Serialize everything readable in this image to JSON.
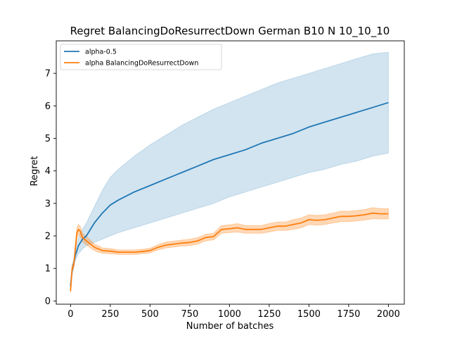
{
  "chart_data": {
    "type": "line",
    "title": "Regret BalancingDoResurrectDown German B10 N 10_10_10",
    "xlabel": "Number of batches",
    "ylabel": "Regret",
    "xlim": [
      -90,
      2100
    ],
    "ylim": [
      -0.1,
      8.0
    ],
    "xticks": [
      0,
      250,
      500,
      750,
      1000,
      1250,
      1500,
      1750,
      2000
    ],
    "yticks": [
      0,
      1,
      2,
      3,
      4,
      5,
      6,
      7
    ],
    "grid": false,
    "legend_position": "top-left",
    "series": [
      {
        "name": "alpha-0.5",
        "color": "#1f77b4",
        "band_color": "#1f77b4",
        "band_opacity": 0.2,
        "x": [
          0,
          10,
          20,
          30,
          50,
          75,
          100,
          150,
          200,
          250,
          300,
          400,
          500,
          600,
          700,
          800,
          900,
          1000,
          1100,
          1200,
          1300,
          1400,
          1500,
          1600,
          1700,
          1800,
          1900,
          2000
        ],
        "mean": [
          0.45,
          0.95,
          1.15,
          1.4,
          1.7,
          1.9,
          2.0,
          2.4,
          2.7,
          2.95,
          3.1,
          3.35,
          3.55,
          3.75,
          3.95,
          4.15,
          4.35,
          4.5,
          4.65,
          4.85,
          5.0,
          5.15,
          5.35,
          5.5,
          5.65,
          5.8,
          5.95,
          6.1
        ],
        "lower": [
          0.35,
          0.8,
          1.05,
          1.25,
          1.45,
          1.6,
          1.7,
          1.8,
          1.9,
          2.0,
          2.1,
          2.25,
          2.4,
          2.55,
          2.7,
          2.85,
          3.0,
          3.2,
          3.35,
          3.5,
          3.65,
          3.8,
          3.95,
          4.05,
          4.2,
          4.3,
          4.45,
          4.55
        ],
        "upper": [
          0.55,
          1.1,
          1.3,
          1.55,
          1.95,
          2.2,
          2.4,
          2.9,
          3.4,
          3.8,
          4.05,
          4.45,
          4.8,
          5.1,
          5.4,
          5.65,
          5.9,
          6.1,
          6.3,
          6.5,
          6.7,
          6.85,
          7.0,
          7.15,
          7.3,
          7.45,
          7.6,
          7.65
        ]
      },
      {
        "name": "alpha BalancingDoResurrectDown",
        "color": "#ff7f0e",
        "band_color": "#ff7f0e",
        "band_opacity": 0.3,
        "x": [
          0,
          10,
          20,
          30,
          40,
          50,
          60,
          75,
          100,
          125,
          150,
          175,
          200,
          250,
          300,
          350,
          400,
          450,
          500,
          550,
          600,
          650,
          700,
          750,
          800,
          850,
          900,
          950,
          1000,
          1050,
          1100,
          1150,
          1200,
          1250,
          1300,
          1350,
          1400,
          1450,
          1500,
          1550,
          1600,
          1650,
          1700,
          1750,
          1800,
          1850,
          1900,
          1950,
          2000
        ],
        "mean": [
          0.3,
          1.0,
          1.1,
          1.6,
          2.1,
          2.2,
          2.15,
          1.95,
          1.85,
          1.75,
          1.65,
          1.6,
          1.55,
          1.53,
          1.5,
          1.5,
          1.5,
          1.52,
          1.55,
          1.65,
          1.72,
          1.75,
          1.78,
          1.8,
          1.85,
          1.95,
          1.98,
          2.2,
          2.22,
          2.25,
          2.2,
          2.2,
          2.2,
          2.25,
          2.3,
          2.3,
          2.35,
          2.4,
          2.5,
          2.48,
          2.5,
          2.55,
          2.6,
          2.6,
          2.62,
          2.65,
          2.7,
          2.68,
          2.68
        ],
        "lower": [
          0.25,
          0.9,
          1.0,
          1.45,
          1.95,
          2.05,
          2.0,
          1.82,
          1.72,
          1.63,
          1.55,
          1.5,
          1.47,
          1.45,
          1.43,
          1.43,
          1.43,
          1.45,
          1.48,
          1.57,
          1.63,
          1.66,
          1.69,
          1.7,
          1.75,
          1.85,
          1.88,
          2.08,
          2.1,
          2.12,
          2.08,
          2.08,
          2.08,
          2.12,
          2.17,
          2.17,
          2.2,
          2.25,
          2.35,
          2.33,
          2.35,
          2.4,
          2.44,
          2.44,
          2.46,
          2.49,
          2.53,
          2.52,
          2.52
        ],
        "upper": [
          0.35,
          1.1,
          1.2,
          1.75,
          2.25,
          2.35,
          2.3,
          2.08,
          1.98,
          1.87,
          1.75,
          1.7,
          1.63,
          1.61,
          1.57,
          1.57,
          1.57,
          1.59,
          1.62,
          1.73,
          1.81,
          1.84,
          1.87,
          1.9,
          1.95,
          2.05,
          2.08,
          2.32,
          2.34,
          2.38,
          2.32,
          2.32,
          2.32,
          2.38,
          2.43,
          2.43,
          2.5,
          2.55,
          2.65,
          2.63,
          2.65,
          2.7,
          2.76,
          2.76,
          2.78,
          2.81,
          2.87,
          2.84,
          2.84
        ]
      }
    ]
  }
}
